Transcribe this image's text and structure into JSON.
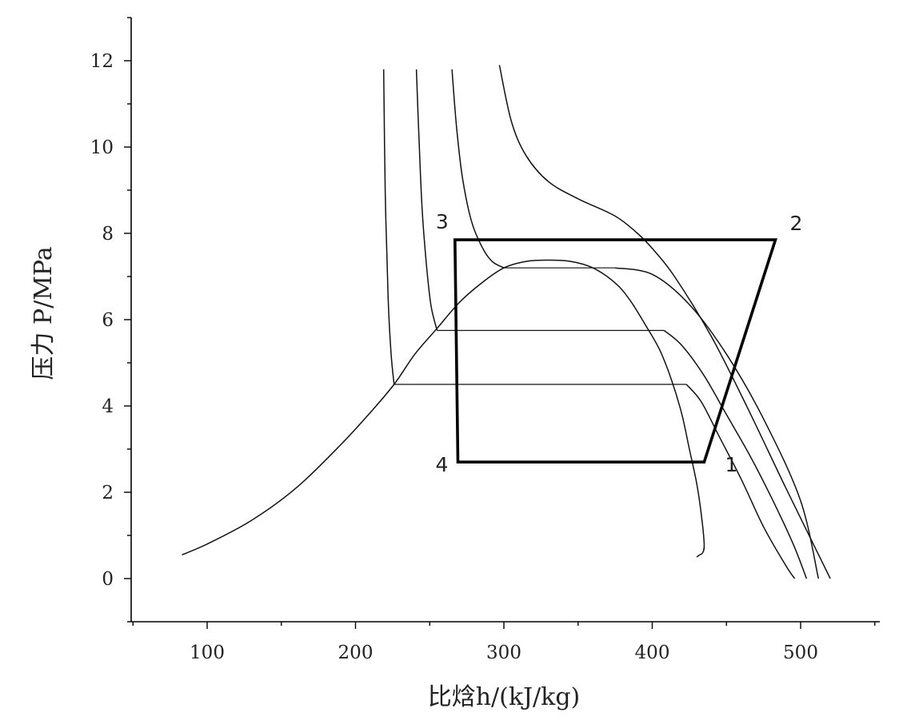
{
  "chart_data": {
    "type": "line",
    "title": "",
    "xlabel": "比焓h/(kJ/kg)",
    "ylabel": "压力 P/MPa",
    "xlim": [
      50,
      550
    ],
    "ylim": [
      -1,
      13
    ],
    "xticks": [
      "100",
      "200",
      "300",
      "400",
      "500"
    ],
    "yticks": [
      "0",
      "2",
      "4",
      "6",
      "8",
      "10",
      "12"
    ],
    "grid": false,
    "series": [
      {
        "role": "saturation-dome",
        "x": [
          83,
          100,
          130,
          160,
          190,
          210,
          226,
          240,
          255,
          270,
          285,
          300,
          315,
          330,
          345,
          360,
          375,
          385,
          395,
          405,
          413,
          420,
          425,
          430,
          433,
          435,
          434,
          432,
          430
        ],
        "y": [
          0.55,
          0.8,
          1.35,
          2.1,
          3.1,
          3.85,
          4.5,
          5.2,
          5.8,
          6.4,
          6.85,
          7.2,
          7.35,
          7.38,
          7.35,
          7.2,
          6.85,
          6.45,
          5.9,
          5.3,
          4.6,
          3.8,
          3.0,
          2.2,
          1.5,
          0.8,
          0.6,
          0.55,
          0.5
        ]
      },
      {
        "role": "isotherm-1",
        "x": [
          219,
          220,
          222,
          224,
          226,
          265,
          300,
          340,
          380,
          423,
          433,
          445,
          460,
          475,
          490,
          496
        ],
        "y": [
          11.8,
          9,
          6.5,
          5.2,
          4.5,
          4.5,
          4.5,
          4.5,
          4.5,
          4.5,
          4.1,
          3.3,
          2.3,
          1.2,
          0.3,
          0
        ]
      },
      {
        "role": "isotherm-2",
        "x": [
          241,
          243,
          245,
          248,
          251,
          255,
          290,
          330,
          370,
          408,
          420,
          435,
          450,
          465,
          480,
          495,
          504
        ],
        "y": [
          11.8,
          10,
          8.5,
          7.2,
          6.3,
          5.75,
          5.75,
          5.75,
          5.75,
          5.75,
          5.4,
          4.7,
          3.8,
          2.9,
          1.9,
          0.8,
          0
        ]
      },
      {
        "role": "isotherm-3",
        "x": [
          265,
          268,
          272,
          278,
          285,
          292,
          300,
          308,
          330,
          360,
          375,
          400,
          425,
          450,
          475,
          500,
          512
        ],
        "y": [
          11.8,
          10.5,
          9.3,
          8.3,
          7.7,
          7.35,
          7.2,
          7.2,
          7.2,
          7.2,
          7.2,
          7.05,
          6.35,
          5.2,
          3.7,
          1.8,
          0
        ]
      },
      {
        "role": "isotherm-4",
        "x": [
          297,
          305,
          315,
          330,
          350,
          375,
          390,
          400,
          415,
          440,
          465,
          490,
          510,
          520
        ],
        "y": [
          11.9,
          10.6,
          9.8,
          9.2,
          8.8,
          8.4,
          8.0,
          7.65,
          7.0,
          5.6,
          3.9,
          2.1,
          0.7,
          0
        ]
      },
      {
        "role": "cycle",
        "x": [
          435,
          483,
          267,
          269,
          435
        ],
        "y": [
          2.7,
          7.85,
          7.85,
          2.7,
          2.7
        ]
      }
    ],
    "points": [
      {
        "label": "1",
        "x": 435,
        "y": 2.7
      },
      {
        "label": "2",
        "x": 483,
        "y": 7.85
      },
      {
        "label": "3",
        "x": 267,
        "y": 7.85
      },
      {
        "label": "4",
        "x": 269,
        "y": 2.7
      }
    ]
  }
}
